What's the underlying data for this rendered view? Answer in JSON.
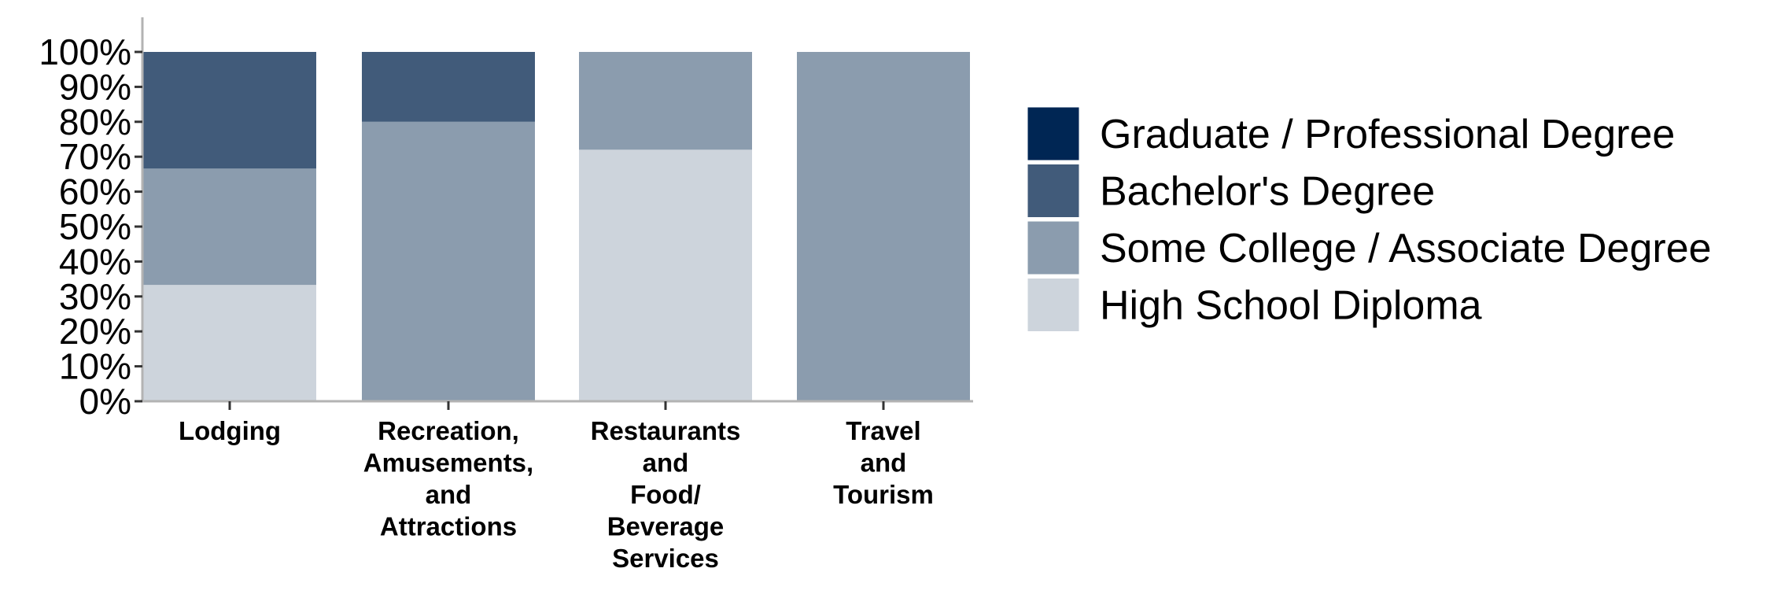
{
  "chart_data": {
    "type": "bar",
    "stacked": true,
    "categories": [
      [
        "Lodging"
      ],
      [
        "Recreation,",
        "Amusements,",
        "and",
        "Attractions"
      ],
      [
        "Restaurants",
        "and",
        "Food/",
        "Beverage",
        "Services"
      ],
      [
        "Travel",
        "and",
        "Tourism"
      ]
    ],
    "series": [
      {
        "name": "High School Diploma",
        "color": "#cdd4dc",
        "values": [
          33.3,
          0,
          72,
          0
        ]
      },
      {
        "name": "Some College / Associate Degree",
        "color": "#8b9cae",
        "values": [
          33.3,
          80,
          28,
          100
        ]
      },
      {
        "name": "Bachelor's Degree",
        "color": "#415b7a",
        "values": [
          33.4,
          20,
          0,
          0
        ]
      },
      {
        "name": "Graduate / Professional Degree",
        "color": "#002654",
        "values": [
          0,
          0,
          0,
          0
        ]
      }
    ],
    "legend_order": [
      "Graduate / Professional Degree",
      "Bachelor's Degree",
      "Some College / Associate Degree",
      "High School Diploma"
    ],
    "yticks": [
      "0%",
      "10%",
      "20%",
      "30%",
      "40%",
      "50%",
      "60%",
      "70%",
      "80%",
      "90%",
      "100%"
    ],
    "ylim": [
      0,
      100
    ],
    "title": "",
    "xlabel": "",
    "ylabel": "",
    "legend_position": "right",
    "grid": false
  }
}
